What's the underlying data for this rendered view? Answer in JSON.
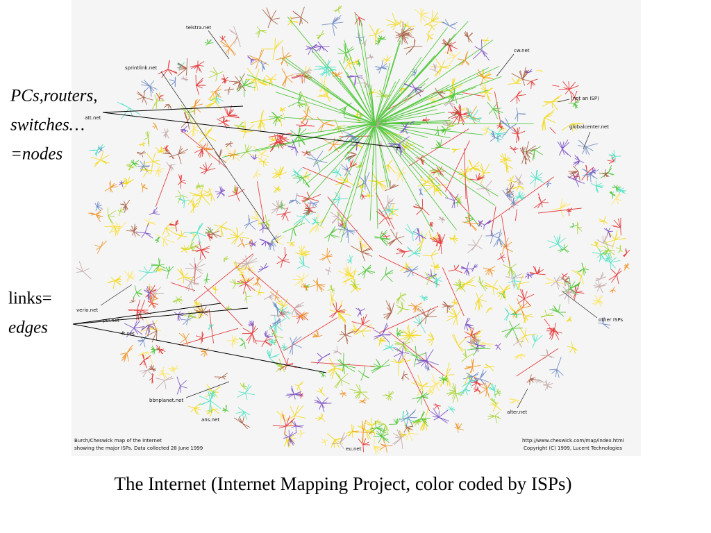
{
  "map": {
    "labels": [
      "telstra.net",
      "cw.net",
      "sprintlink.net",
      "(not an ISP)",
      "att.net",
      "globalcenter.net",
      "verio.net",
      "psi.net",
      "ft.net",
      "other ISPs",
      "bbnplanet.net",
      "ans.net",
      "alter.net",
      "eu.net"
    ],
    "credits": [
      "Burch/Cheswick map of the Internet",
      "showing the major ISPs.  Data collected 28 June 1999",
      "http://www.cheswick.com/map/index.html",
      "Copyright (C) 1999, Lucent Technologies"
    ]
  },
  "annotations": {
    "nodes": [
      "PCs,routers,",
      "switches…",
      "=nodes"
    ],
    "edges": [
      "links=",
      "edges"
    ]
  },
  "caption": "The Internet (Internet Mapping Project, color coded by ISPs)"
}
